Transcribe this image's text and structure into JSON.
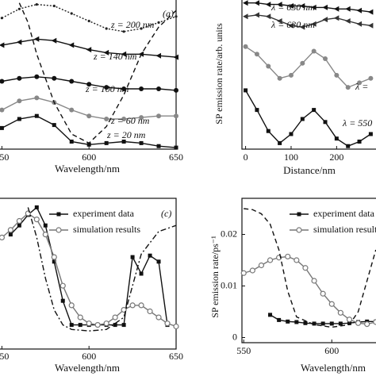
{
  "chart_data": [
    {
      "type": "line",
      "xlabel": "Wavelength/nm",
      "xlim": [
        548,
        650
      ],
      "ylim": [
        0,
        100
      ],
      "xticks": [
        550,
        600,
        650
      ],
      "yticks": [],
      "annotations": [
        "(a)",
        "z = 200 nm",
        "z = 140 nm",
        "z = 100 nm",
        "z = 60 nm",
        "z = 20 nm"
      ],
      "series": [
        {
          "color": "#222222",
          "marker": "dot",
          "dash": "dot",
          "x": [
            550,
            560,
            570,
            580,
            590,
            600,
            610,
            620,
            630,
            640,
            650
          ],
          "values": [
            87,
            93,
            96,
            95,
            90,
            85,
            80,
            78,
            80,
            84,
            88
          ]
        },
        {
          "color": "#111111",
          "marker": "triangle",
          "dash": "solid",
          "x": [
            550,
            560,
            570,
            580,
            590,
            600,
            610,
            620,
            630,
            640,
            650
          ],
          "values": [
            69,
            71,
            73,
            72,
            69,
            66,
            64,
            63,
            63,
            62,
            61
          ]
        },
        {
          "color": "#111111",
          "marker": "circle",
          "dash": "solid",
          "x": [
            550,
            560,
            570,
            580,
            590,
            600,
            610,
            620,
            630,
            640,
            650
          ],
          "values": [
            45,
            47,
            48,
            47,
            45,
            43,
            41,
            40,
            40,
            40,
            39
          ]
        },
        {
          "color": "#888888",
          "marker": "circle",
          "dash": "solid",
          "x": [
            550,
            560,
            570,
            580,
            590,
            600,
            610,
            620,
            630,
            640,
            650
          ],
          "values": [
            26,
            32,
            34,
            31,
            26,
            22,
            20,
            20,
            21,
            22,
            22
          ]
        },
        {
          "color": "#111111",
          "marker": "square",
          "dash": "solid",
          "x": [
            550,
            560,
            570,
            580,
            590,
            600,
            610,
            620,
            630,
            640,
            650
          ],
          "values": [
            14,
            20,
            22,
            16,
            5,
            3,
            4,
            5,
            4,
            2,
            1
          ]
        },
        {
          "color": "#111111",
          "marker": "none",
          "dash": "dash",
          "x": [
            560,
            565,
            570,
            575,
            580,
            590,
            600,
            610,
            620,
            630,
            640,
            650
          ],
          "values": [
            97,
            84,
            63,
            47,
            31,
            10,
            4,
            15,
            36,
            63,
            81,
            92
          ]
        }
      ]
    },
    {
      "type": "line",
      "xlabel": "Distance/nm",
      "ylabel": "SP emission rate/arb. units",
      "xlim": [
        -8,
        290
      ],
      "ylim": [
        0,
        100
      ],
      "xticks": [
        0,
        100,
        200
      ],
      "yticks": [],
      "annotations": [
        "λ = 650 nm",
        "λ = 630 nm",
        "λ =",
        "λ = 550"
      ],
      "series": [
        {
          "color": "#111111",
          "marker": "triangle",
          "dash": "solid",
          "x": [
            0,
            25,
            50,
            75,
            100,
            125,
            150,
            175,
            200,
            225,
            250,
            275
          ],
          "values": [
            97,
            97,
            96,
            96,
            95,
            95,
            94,
            94,
            93,
            93,
            92,
            91
          ]
        },
        {
          "color": "#333333",
          "marker": "triangle",
          "dash": "solid",
          "x": [
            0,
            25,
            50,
            75,
            100,
            125,
            150,
            175,
            200,
            225,
            250,
            275
          ],
          "values": [
            88,
            89,
            88,
            85,
            82,
            81,
            83,
            86,
            87,
            85,
            83,
            82
          ]
        },
        {
          "color": "#888888",
          "marker": "circle",
          "dash": "solid",
          "x": [
            0,
            25,
            50,
            75,
            100,
            125,
            150,
            175,
            200,
            225,
            250,
            275
          ],
          "values": [
            68,
            63,
            55,
            47,
            49,
            57,
            65,
            60,
            49,
            41,
            44,
            47
          ]
        },
        {
          "color": "#111111",
          "marker": "square",
          "dash": "solid",
          "x": [
            0,
            25,
            50,
            75,
            100,
            125,
            150,
            175,
            200,
            225,
            250,
            275
          ],
          "values": [
            39,
            26,
            12,
            4,
            10,
            20,
            26,
            18,
            7,
            2,
            5,
            10
          ]
        }
      ]
    },
    {
      "type": "line",
      "xlabel": "Wavelength/nm",
      "xlim": [
        548,
        650
      ],
      "ylim": [
        0,
        100
      ],
      "xticks": [
        550,
        600,
        650
      ],
      "yticks": [],
      "annotations": [
        "(c)"
      ],
      "series": [
        {
          "name": "experiment data",
          "color": "#111111",
          "marker": "square",
          "dash": "solid",
          "x": [
            555,
            560,
            565,
            570,
            575,
            580,
            585,
            590,
            595,
            600,
            605,
            610,
            615,
            620,
            625,
            630,
            635,
            640,
            645
          ],
          "values": [
            76,
            82,
            89,
            94,
            82,
            58,
            32,
            16,
            16,
            16,
            16,
            16,
            16,
            16,
            61,
            50,
            62,
            58,
            16
          ]
        },
        {
          "name": "simulation results",
          "color": "#777777",
          "marker": "open-circle",
          "dash": "solid",
          "x": [
            550,
            555,
            560,
            565,
            570,
            575,
            580,
            585,
            590,
            595,
            600,
            605,
            610,
            615,
            620,
            625,
            630,
            635,
            640,
            645,
            650
          ],
          "values": [
            74,
            79,
            85,
            90,
            86,
            76,
            61,
            42,
            29,
            21,
            17,
            16,
            17,
            21,
            26,
            29,
            29,
            25,
            21,
            17,
            15
          ]
        },
        {
          "color": "#111111",
          "marker": "none",
          "dash": "dashdot",
          "x": [
            565,
            570,
            575,
            580,
            585,
            590,
            600,
            610,
            620,
            625,
            630,
            640,
            650
          ],
          "values": [
            94,
            74,
            47,
            26,
            16,
            13,
            12,
            13,
            21,
            42,
            63,
            78,
            82
          ]
        }
      ]
    },
    {
      "type": "line",
      "xlabel": "Wavelength/nm",
      "ylabel": "SP emission rate/ps⁻¹",
      "xlim": [
        549,
        626
      ],
      "ylim": [
        -0.001,
        0.027
      ],
      "xticks": [
        550,
        600
      ],
      "yticks": [
        0,
        0.01,
        0.02
      ],
      "annotations": [],
      "series": [
        {
          "name": "experiment data",
          "color": "#111111",
          "marker": "square",
          "dash": "solid",
          "x": [
            565,
            570,
            575,
            580,
            585,
            590,
            595,
            600,
            605,
            610,
            615,
            620,
            625
          ],
          "values": [
            0.0044,
            0.0034,
            0.0031,
            0.003,
            0.0028,
            0.0027,
            0.0027,
            0.0027,
            0.0027,
            0.0028,
            0.003,
            0.0031,
            0.0031
          ]
        },
        {
          "name": "simulation results",
          "color": "#777777",
          "marker": "open-circle",
          "dash": "solid",
          "x": [
            550,
            555,
            560,
            565,
            570,
            575,
            580,
            585,
            590,
            595,
            600,
            605,
            610,
            615,
            620,
            625
          ],
          "values": [
            0.0125,
            0.013,
            0.014,
            0.015,
            0.0155,
            0.0157,
            0.015,
            0.0135,
            0.011,
            0.0085,
            0.0065,
            0.0048,
            0.0035,
            0.0028,
            0.0026,
            0.003
          ]
        },
        {
          "color": "#111111",
          "marker": "none",
          "dash": "dash",
          "x": [
            550,
            555,
            560,
            565,
            570,
            575,
            580,
            590,
            600,
            610,
            615,
            620,
            625
          ],
          "values": [
            0.025,
            0.0248,
            0.024,
            0.022,
            0.017,
            0.009,
            0.004,
            0.0025,
            0.002,
            0.0025,
            0.005,
            0.011,
            0.017
          ]
        }
      ]
    }
  ]
}
